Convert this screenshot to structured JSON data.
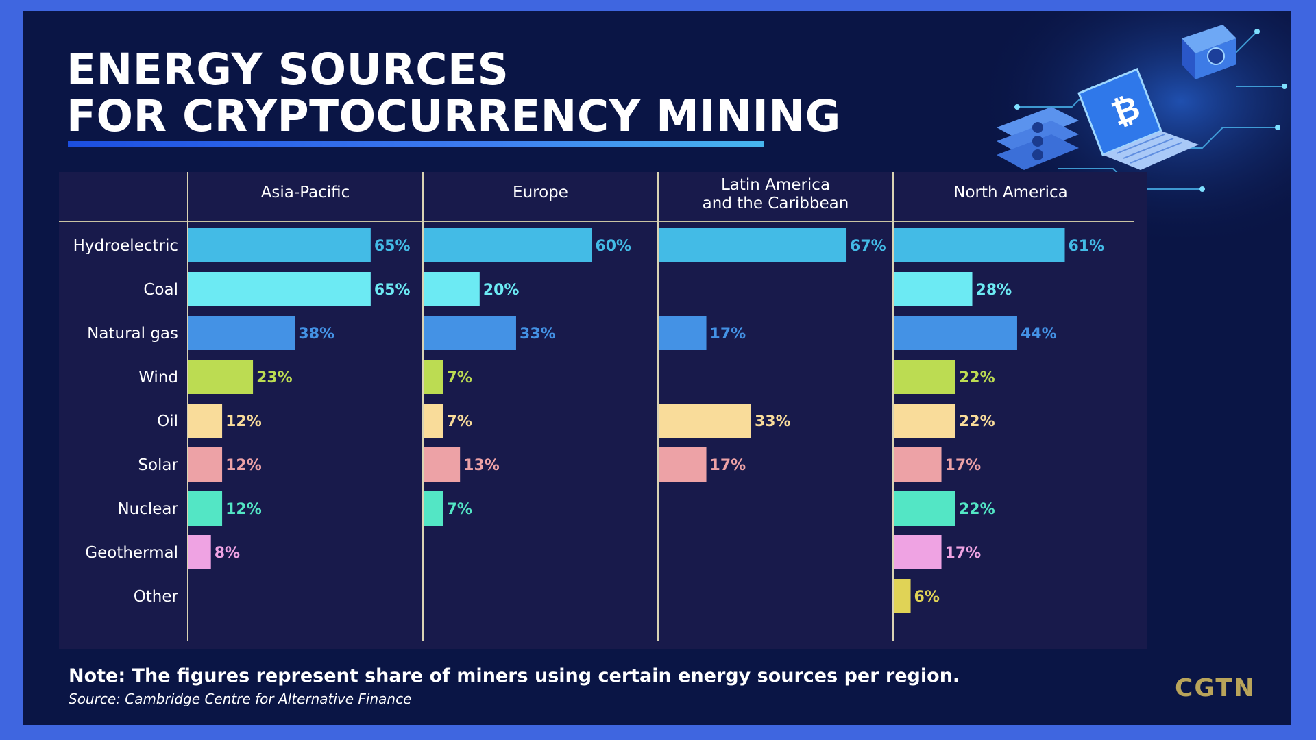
{
  "header": {
    "title_line1": "ENERGY SOURCES",
    "title_line2": "FOR CRYPTOCURRENCY MINING"
  },
  "footer": {
    "note": "Note: The figures represent share of miners using certain energy sources per region.",
    "source": "Source: Cambridge Centre for Alternative Finance",
    "logo": "CGTN"
  },
  "decoration": {
    "icons": [
      "laptop-icon",
      "bitcoin-icon",
      "mining-rig-icon",
      "gpu-stack-icon",
      "circuit-lines-icon"
    ]
  },
  "colors": {
    "page_border": "#3f66e0",
    "page_background": "#0a1545",
    "panel_background": "#181a4b",
    "Hydroelectric": "#43bbe6",
    "Coal": "#6ceaf3",
    "Natural gas": "#4492e5",
    "Wind": "#bcdc52",
    "Oil": "#f9dc9a",
    "Solar": "#eda2a6",
    "Nuclear": "#53e6c5",
    "Geothermal": "#efa3e3",
    "Other": "#e0d356"
  },
  "chart_data": {
    "type": "bar",
    "orientation": "horizontal",
    "categories": [
      "Hydroelectric",
      "Coal",
      "Natural gas",
      "Wind",
      "Oil",
      "Solar",
      "Nuclear",
      "Geothermal",
      "Other"
    ],
    "value_suffix": "%",
    "xlim": [
      0,
      100
    ],
    "grid": false,
    "series": [
      {
        "name": "Asia-Pacific",
        "values": [
          65,
          65,
          38,
          23,
          12,
          12,
          12,
          8,
          null
        ]
      },
      {
        "name": "Europe",
        "values": [
          60,
          20,
          33,
          7,
          7,
          13,
          7,
          null,
          null
        ]
      },
      {
        "name": "Latin America and the Caribbean",
        "values": [
          67,
          null,
          17,
          null,
          33,
          17,
          null,
          null,
          null
        ]
      },
      {
        "name": "North America",
        "values": [
          61,
          28,
          44,
          22,
          22,
          17,
          22,
          17,
          6
        ]
      }
    ]
  }
}
